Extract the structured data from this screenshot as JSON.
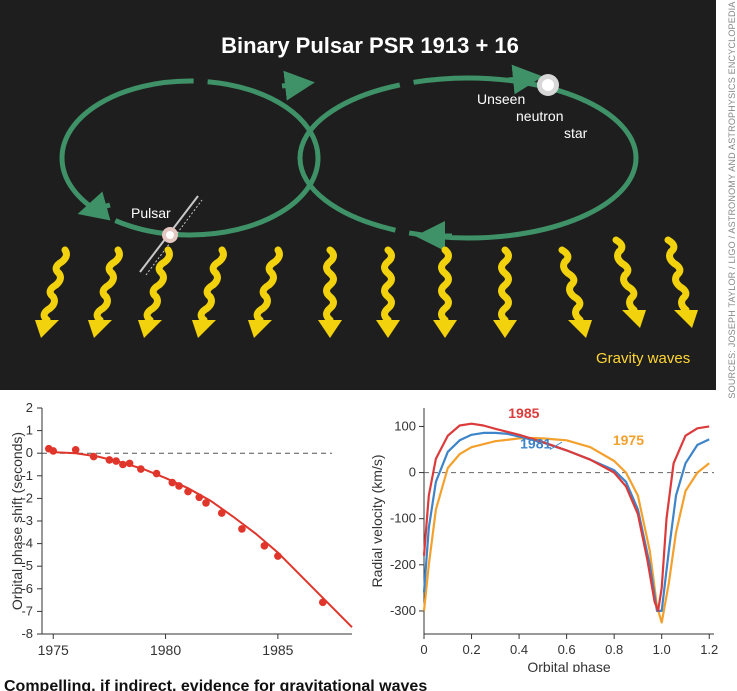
{
  "diagram": {
    "title": "Binary Pulsar PSR 1913 + 16",
    "pulsar_label": "Pulsar",
    "neutron_star_label_lines": [
      "Unseen",
      "neutron",
      "star"
    ],
    "gravity_waves_label": "Gravity waves",
    "credit": "SOURCES: JOSEPH TAYLOR / LIGO / ASTRONOMY AND ASTROPHYSICS ENCYCLOPEDIA",
    "colors": {
      "background": "#1e1e1e",
      "orbit": "#3f9167",
      "wave": "#f2d20c",
      "label": "#ffd633"
    }
  },
  "chart_data": [
    {
      "type": "scatter",
      "xlabel": "",
      "ylabel": "Orbital phase shift (seconds)",
      "xlim": [
        1974.5,
        1988.3
      ],
      "ylim": [
        -8,
        2
      ],
      "xticks": [
        1975,
        1980,
        1985
      ],
      "yticks": [
        2,
        1,
        0,
        -1,
        -2,
        -3,
        -4,
        -5,
        -6,
        -7,
        -8
      ],
      "grid": false,
      "reference_line_y": 0,
      "colors": {
        "points": "#e0352b",
        "fit": "#e0352b",
        "reference": "#555555"
      },
      "points": {
        "x": [
          1974.8,
          1975.0,
          1976.0,
          1976.8,
          1977.5,
          1977.8,
          1978.1,
          1978.4,
          1978.9,
          1979.6,
          1980.3,
          1980.6,
          1981.0,
          1981.5,
          1981.8,
          1982.5,
          1983.4,
          1984.4,
          1985.0,
          1987.0
        ],
        "y": [
          0.2,
          0.1,
          0.15,
          -0.15,
          -0.3,
          -0.35,
          -0.5,
          -0.45,
          -0.7,
          -0.9,
          -1.3,
          -1.45,
          -1.7,
          -1.95,
          -2.2,
          -2.65,
          -3.35,
          -4.1,
          -4.55,
          -6.6
        ]
      },
      "fit": {
        "x": [
          1975.0,
          1976.0,
          1977.0,
          1978.0,
          1979.0,
          1980.0,
          1981.0,
          1982.0,
          1983.0,
          1984.0,
          1985.0,
          1986.0,
          1987.0,
          1988.3
        ],
        "y": [
          0.05,
          0.0,
          -0.15,
          -0.4,
          -0.7,
          -1.1,
          -1.55,
          -2.1,
          -2.8,
          -3.55,
          -4.4,
          -5.4,
          -6.4,
          -7.7
        ]
      }
    },
    {
      "type": "line",
      "xlabel": "Orbital phase",
      "ylabel": "Radial velocity (km/s)",
      "xlim": [
        0,
        1.22
      ],
      "ylim": [
        -350,
        140
      ],
      "xticks": [
        0,
        0.2,
        0.4,
        0.6,
        0.8,
        1.0,
        1.2
      ],
      "xtick_labels": [
        "0",
        "0.2",
        "0.4",
        "0.6",
        "0.8",
        "1.0",
        "1.2"
      ],
      "yticks": [
        100,
        0,
        -100,
        -200,
        -300
      ],
      "grid": false,
      "reference_line_y": 0,
      "series": [
        {
          "name": "1985",
          "color": "#dc3b3b",
          "x": [
            0.0,
            0.02,
            0.05,
            0.1,
            0.15,
            0.2,
            0.25,
            0.3,
            0.4,
            0.5,
            0.6,
            0.7,
            0.8,
            0.85,
            0.9,
            0.94,
            0.97,
            0.985,
            1.0,
            1.02,
            1.05,
            1.1,
            1.15,
            1.2
          ],
          "y": [
            -180,
            -50,
            30,
            80,
            102,
            106,
            102,
            95,
            82,
            66,
            48,
            28,
            0,
            -30,
            -90,
            -190,
            -280,
            -300,
            -250,
            -100,
            20,
            80,
            96,
            100
          ]
        },
        {
          "name": "1981",
          "color": "#3d84c9",
          "x": [
            0.0,
            0.02,
            0.05,
            0.1,
            0.15,
            0.2,
            0.25,
            0.3,
            0.35,
            0.4,
            0.5,
            0.6,
            0.7,
            0.8,
            0.85,
            0.9,
            0.95,
            0.98,
            1.0,
            1.03,
            1.06,
            1.1,
            1.15,
            1.2
          ],
          "y": [
            -260,
            -120,
            -20,
            45,
            70,
            82,
            86,
            86,
            84,
            78,
            65,
            48,
            28,
            5,
            -20,
            -80,
            -200,
            -300,
            -300,
            -170,
            -50,
            20,
            60,
            72
          ]
        },
        {
          "name": "1975",
          "color": "#f3a02d",
          "x": [
            0.0,
            0.02,
            0.05,
            0.1,
            0.15,
            0.2,
            0.3,
            0.4,
            0.45,
            0.5,
            0.55,
            0.6,
            0.7,
            0.8,
            0.85,
            0.9,
            0.95,
            0.98,
            1.0,
            1.03,
            1.06,
            1.1,
            1.15,
            1.2
          ],
          "y": [
            -300,
            -200,
            -80,
            10,
            40,
            55,
            68,
            74,
            75,
            74,
            72,
            70,
            55,
            25,
            0,
            -50,
            -170,
            -290,
            -325,
            -240,
            -130,
            -40,
            0,
            20
          ]
        }
      ]
    }
  ],
  "caption": "Compelling, if indirect, evidence for gravitational waves"
}
